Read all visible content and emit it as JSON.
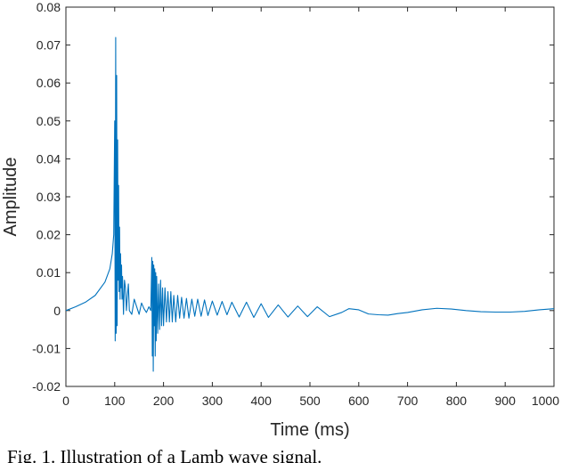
{
  "chart_data": {
    "type": "line",
    "title": "",
    "xlabel": "Time (ms)",
    "ylabel": "Amplitude",
    "xlim": [
      0,
      1000
    ],
    "ylim": [
      -0.02,
      0.08
    ],
    "xticks": [
      0,
      100,
      200,
      300,
      400,
      500,
      600,
      700,
      800,
      900,
      1000
    ],
    "yticks": [
      -0.02,
      -0.01,
      0,
      0.01,
      0.02,
      0.03,
      0.04,
      0.05,
      0.06,
      0.07,
      0.08
    ],
    "xtick_labels": [
      "0",
      "100",
      "200",
      "300",
      "400",
      "500",
      "600",
      "700",
      "800",
      "900",
      "1000"
    ],
    "ytick_labels": [
      "-0.02",
      "-0.01",
      "0",
      "0.01",
      "0.02",
      "0.03",
      "0.04",
      "0.05",
      "0.06",
      "0.07",
      "0.08"
    ],
    "grid": false,
    "series": [
      {
        "color": "#0072bd",
        "x": [
          0,
          20,
          40,
          60,
          80,
          90,
          95,
          98,
          100,
          101,
          102,
          103,
          104,
          105,
          106,
          107,
          108,
          109,
          110,
          111,
          112,
          113,
          114,
          115,
          116,
          118,
          120,
          122,
          124,
          126,
          128,
          130,
          135,
          140,
          145,
          150,
          155,
          160,
          165,
          170,
          174,
          176,
          177,
          178,
          179,
          180,
          181,
          182,
          183,
          184,
          185,
          186,
          188,
          190,
          192,
          194,
          196,
          198,
          200,
          203,
          206,
          209,
          212,
          215,
          218,
          221,
          225,
          229,
          233,
          237,
          242,
          247,
          252,
          258,
          264,
          270,
          277,
          284,
          291,
          300,
          310,
          320,
          330,
          340,
          355,
          370,
          385,
          400,
          415,
          435,
          455,
          475,
          495,
          515,
          540,
          565,
          580,
          600,
          620,
          640,
          660,
          680,
          700,
          730,
          760,
          790,
          820,
          850,
          880,
          910,
          940,
          970,
          1000
        ],
        "y": [
          0,
          0.001,
          0.0022,
          0.004,
          0.0075,
          0.011,
          0.015,
          0.02,
          0.05,
          -0.008,
          0.072,
          -0.006,
          0.062,
          -0.004,
          0.045,
          0.008,
          0.033,
          0.005,
          0.022,
          0.003,
          0.015,
          0.006,
          0.012,
          0.003,
          0.009,
          -0.001,
          0.008,
          0.006,
          0.0,
          0.004,
          0.007,
          0.0,
          -0.001,
          0.003,
          0.001,
          -0.001,
          0.002,
          0.0005,
          -0.0005,
          0.001,
          0.0,
          0.014,
          -0.012,
          0.013,
          -0.016,
          0.012,
          -0.004,
          0.011,
          -0.012,
          0.01,
          -0.008,
          0.009,
          -0.006,
          0.007,
          -0.005,
          0.008,
          -0.004,
          0.006,
          -0.004,
          0.006,
          -0.003,
          0.005,
          -0.003,
          0.005,
          -0.003,
          0.004,
          -0.003,
          0.004,
          -0.002,
          0.0035,
          -0.002,
          0.0032,
          -0.002,
          0.003,
          -0.0015,
          0.003,
          -0.0015,
          0.0028,
          -0.0013,
          0.0025,
          -0.0012,
          0.0024,
          -0.0011,
          0.0022,
          -0.0017,
          0.0022,
          -0.0018,
          0.0018,
          -0.0018,
          0.0015,
          -0.0017,
          0.0012,
          -0.0016,
          0.001,
          -0.0016,
          -0.0005,
          0.0005,
          0.0002,
          -0.0009,
          -0.0011,
          -0.0012,
          -0.0008,
          -0.0005,
          0.0002,
          0.0006,
          0.0004,
          0.0,
          -0.0003,
          -0.0004,
          -0.0004,
          -0.0002,
          0.0002,
          0.0005
        ]
      }
    ],
    "caption": "Fig. 1. Illustration of a Lamb wave signal."
  }
}
